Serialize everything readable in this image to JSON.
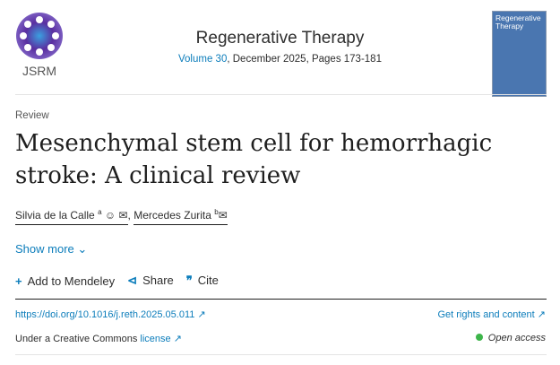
{
  "header": {
    "logo_text": "JSRM",
    "journal_title": "Regenerative Therapy",
    "volume_link": "Volume 30",
    "issue_info": ", December 2025, Pages 173-181",
    "cover_text": "Regenerative Therapy"
  },
  "article": {
    "type": "Review",
    "title": "Mesenchymal stem cell for hemorrhagic stroke: A clinical review",
    "authors": [
      {
        "name": "Silvia de la Calle",
        "sup": "a",
        "icons": [
          "person-icon",
          "mail-icon"
        ]
      },
      {
        "name": "Mercedes Zurita",
        "sup": "b",
        "icons": [
          "mail-icon"
        ]
      }
    ],
    "separator": ",",
    "show_more": "Show more"
  },
  "actions": [
    {
      "icon": "plus-icon",
      "label": "Add to Mendeley"
    },
    {
      "icon": "share-icon",
      "label": "Share"
    },
    {
      "icon": "quote-icon",
      "label": "Cite"
    }
  ],
  "links": {
    "doi": "https://doi.org/10.1016/j.reth.2025.05.011",
    "rights": "Get rights and content",
    "license_prefix": "Under a Creative Commons",
    "license_link": "license",
    "open_access": "Open access"
  },
  "colors": {
    "link": "#0c7dbb",
    "open_access_dot": "#3db54a"
  }
}
